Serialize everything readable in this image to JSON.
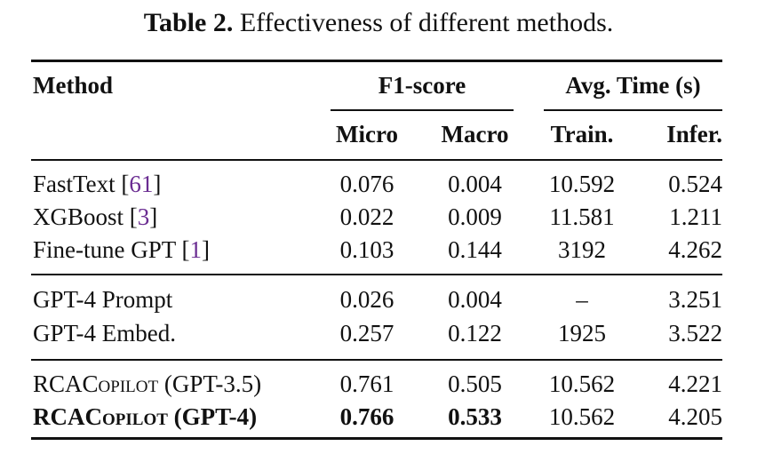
{
  "caption": {
    "label": "Table 2.",
    "text": "Effectiveness of different methods."
  },
  "header": {
    "method": "Method",
    "f1_group": "F1-score",
    "time_group": "Avg. Time (s)",
    "micro": "Micro",
    "macro": "Macro",
    "train": "Train.",
    "infer": "Infer."
  },
  "rows": [
    {
      "name": "FastText",
      "cite": "61",
      "micro": "0.076",
      "macro": "0.004",
      "train": "10.592",
      "infer": "0.524"
    },
    {
      "name": "XGBoost",
      "cite": "3",
      "micro": "0.022",
      "macro": "0.009",
      "train": "11.581",
      "infer": "1.211"
    },
    {
      "name": "Fine-tune GPT",
      "cite": "1",
      "micro": "0.103",
      "macro": "0.144",
      "train": "3192",
      "infer": "4.262"
    },
    {
      "name": "GPT-4 Prompt",
      "micro": "0.026",
      "macro": "0.004",
      "train": "–",
      "infer": "3.251"
    },
    {
      "name": "GPT-4 Embed.",
      "micro": "0.257",
      "macro": "0.122",
      "train": "1925",
      "infer": "3.522"
    },
    {
      "name_prefix": "RCA",
      "name_sc": "Copilot",
      "name_suffix": " (GPT-3.5)",
      "micro": "0.761",
      "macro": "0.505",
      "train": "10.562",
      "infer": "4.221"
    },
    {
      "name_prefix": "RCA",
      "name_sc": "Copilot",
      "name_suffix": " (GPT-4)",
      "micro": "0.766",
      "macro": "0.533",
      "train": "10.562",
      "infer": "4.205"
    }
  ]
}
